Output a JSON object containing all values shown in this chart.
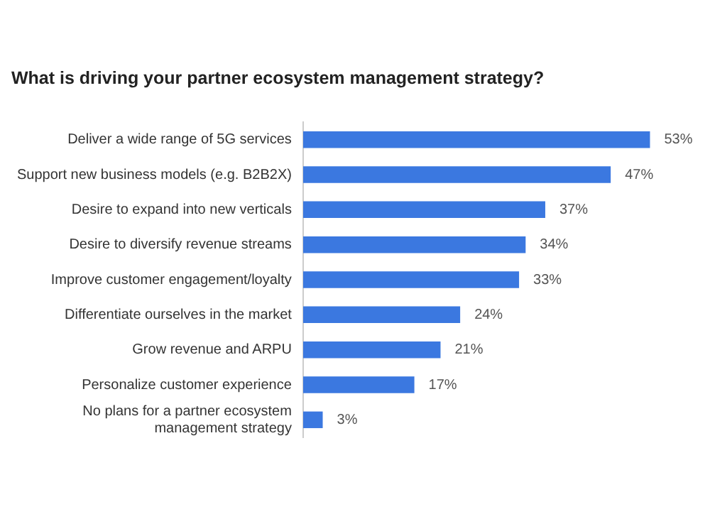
{
  "chart_data": {
    "type": "bar",
    "orientation": "horizontal",
    "title": "What is driving your partner ecosystem management strategy?",
    "categories": [
      "Deliver a wide range of 5G services",
      "Support new business models (e.g. B2B2X)",
      "Desire to expand into new verticals",
      "Desire to diversify revenue streams",
      "Improve customer engagement/loyalty",
      "Differentiate ourselves in the market",
      "Grow revenue and ARPU",
      "Personalize customer experience",
      "No plans for a partner ecosystem management strategy"
    ],
    "values": [
      53,
      47,
      37,
      34,
      33,
      24,
      21,
      17,
      3
    ],
    "color": "#3b78e0",
    "value_labels": [
      "53%",
      "47%",
      "37%",
      "34%",
      "33%",
      "24%",
      "21%",
      "17%",
      "3%"
    ],
    "legend": false
  }
}
